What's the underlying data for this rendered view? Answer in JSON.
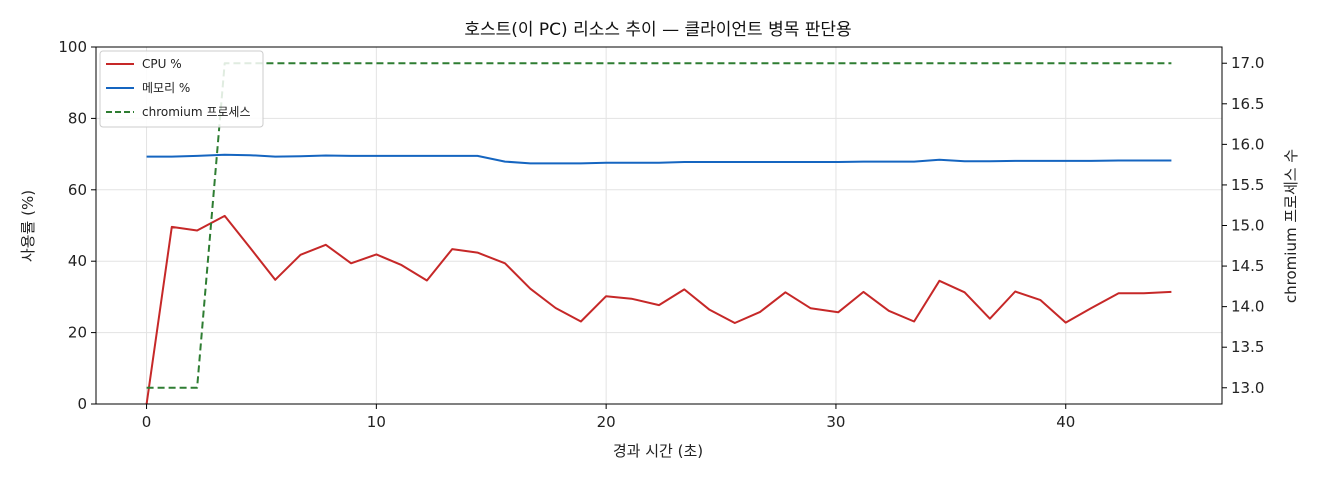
{
  "chart_data": {
    "type": "line",
    "title": "호스트(이 PC) 리소스 추이 — 클라이언트 병목 판단용",
    "xlabel": "경과 시간 (초)",
    "ylabel": "사용률 (%)",
    "y2label": "chromium 프로세스 수",
    "xlim": [
      -2.2,
      46.8
    ],
    "ylim": [
      0,
      100
    ],
    "y2lim": [
      12.8,
      17.2
    ],
    "xticks": [
      0,
      10,
      20,
      30,
      40
    ],
    "yticks": [
      0,
      20,
      40,
      60,
      80,
      100
    ],
    "y2ticks": [
      "13.0",
      "13.5",
      "14.0",
      "14.5",
      "15.0",
      "15.5",
      "16.0",
      "16.5",
      "17.0"
    ],
    "grid": true,
    "legend_position": "upper-left",
    "x": [
      0,
      1.1,
      2.2,
      3.4,
      4.5,
      5.6,
      6.7,
      7.8,
      8.9,
      10.0,
      11.1,
      12.2,
      13.3,
      14.4,
      15.6,
      16.7,
      17.8,
      18.9,
      20.0,
      21.1,
      22.3,
      23.4,
      24.5,
      25.6,
      26.7,
      27.8,
      28.9,
      30.1,
      31.2,
      32.3,
      33.4,
      34.5,
      35.6,
      36.7,
      37.8,
      38.9,
      40.0,
      41.1,
      42.3,
      43.4,
      44.6
    ],
    "series": [
      {
        "name": "CPU %",
        "color": "#c62828",
        "axis": "left",
        "dash": "solid",
        "values": [
          0,
          49.6,
          48.6,
          52.7,
          43.8,
          34.8,
          41.8,
          44.6,
          39.4,
          41.9,
          38.9,
          34.6,
          43.4,
          42.4,
          39.4,
          32.3,
          26.9,
          23.1,
          30.2,
          29.5,
          27.7,
          32.1,
          26.4,
          22.7,
          25.8,
          31.3,
          26.8,
          25.7,
          31.4,
          26.1,
          23.1,
          34.5,
          31.3,
          23.9,
          31.5,
          29.1,
          22.8,
          26.8,
          31.0,
          31.0,
          31.4
        ]
      },
      {
        "name": "메모리 %",
        "color": "#1565c0",
        "axis": "left",
        "dash": "solid",
        "values": [
          69.3,
          69.3,
          69.5,
          69.8,
          69.7,
          69.3,
          69.4,
          69.6,
          69.5,
          69.5,
          69.5,
          69.5,
          69.5,
          69.5,
          67.9,
          67.4,
          67.4,
          67.4,
          67.6,
          67.6,
          67.6,
          67.8,
          67.8,
          67.8,
          67.8,
          67.8,
          67.8,
          67.8,
          67.9,
          67.9,
          67.9,
          68.4,
          68.0,
          68.0,
          68.1,
          68.1,
          68.1,
          68.1,
          68.2,
          68.2,
          68.2
        ]
      },
      {
        "name": "chromium 프로세스",
        "color": "#2e7d32",
        "axis": "right",
        "dash": "dashed",
        "values": [
          13,
          13,
          13,
          17,
          17,
          17,
          17,
          17,
          17,
          17,
          17,
          17,
          17,
          17,
          17,
          17,
          17,
          17,
          17,
          17,
          17,
          17,
          17,
          17,
          17,
          17,
          17,
          17,
          17,
          17,
          17,
          17,
          17,
          17,
          17,
          17,
          17,
          17,
          17,
          17,
          17
        ]
      }
    ]
  }
}
